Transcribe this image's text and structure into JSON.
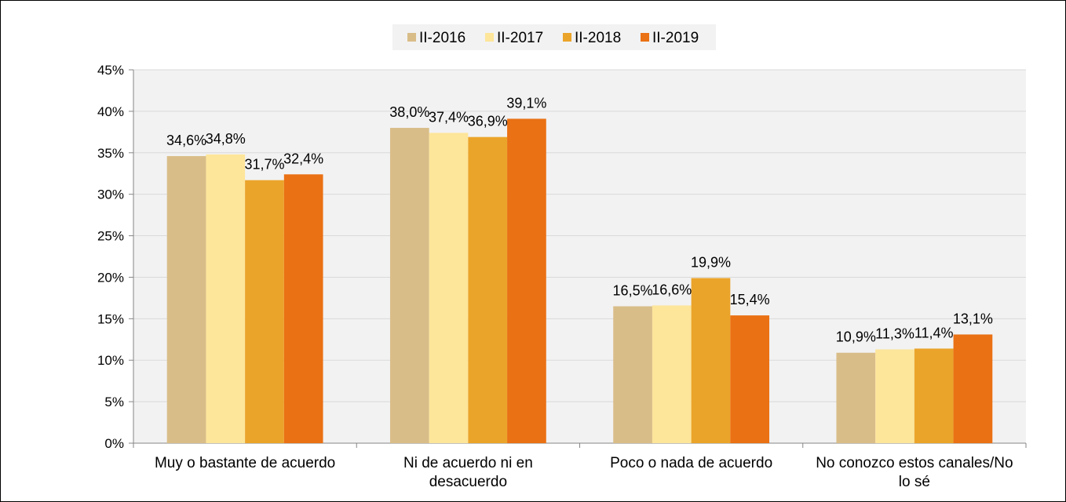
{
  "chart_data": {
    "type": "bar",
    "categories": [
      "Muy o bastante de acuerdo",
      "Ni de acuerdo ni en desacuerdo",
      "Poco o nada de acuerdo",
      "No conozco estos canales/No lo sé"
    ],
    "category_lines": [
      [
        "Muy o bastante de acuerdo"
      ],
      [
        "Ni de acuerdo ni en",
        "desacuerdo"
      ],
      [
        "Poco o nada de acuerdo"
      ],
      [
        "No conozco estos canales/No",
        "lo sé"
      ]
    ],
    "series": [
      {
        "name": "II-2016",
        "color": "#d9bd88",
        "values": [
          34.6,
          38.0,
          16.5,
          10.9
        ],
        "labels": [
          "34,6%",
          "38,0%",
          "16,5%",
          "10,9%"
        ]
      },
      {
        "name": "II-2017",
        "color": "#fde59a",
        "values": [
          34.8,
          37.4,
          16.6,
          11.3
        ],
        "labels": [
          "34,8%",
          "37,4%",
          "16,6%",
          "11,3%"
        ]
      },
      {
        "name": "II-2018",
        "color": "#eba42a",
        "values": [
          31.7,
          36.9,
          19.9,
          11.4
        ],
        "labels": [
          "31,7%",
          "36,9%",
          "19,9%",
          "11,4%"
        ]
      },
      {
        "name": "II-2019",
        "color": "#ea7114",
        "values": [
          32.4,
          39.1,
          15.4,
          13.1
        ],
        "labels": [
          "32,4%",
          "39,1%",
          "15,4%",
          "13,1%"
        ]
      }
    ],
    "ylim": [
      0,
      45
    ],
    "yticks": [
      0,
      5,
      10,
      15,
      20,
      25,
      30,
      35,
      40,
      45
    ],
    "ytick_labels": [
      "0%",
      "5%",
      "10%",
      "15%",
      "20%",
      "25%",
      "30%",
      "35%",
      "40%",
      "45%"
    ],
    "grid": true,
    "legend_position": "top-center",
    "title": "",
    "xlabel": "",
    "ylabel": ""
  }
}
